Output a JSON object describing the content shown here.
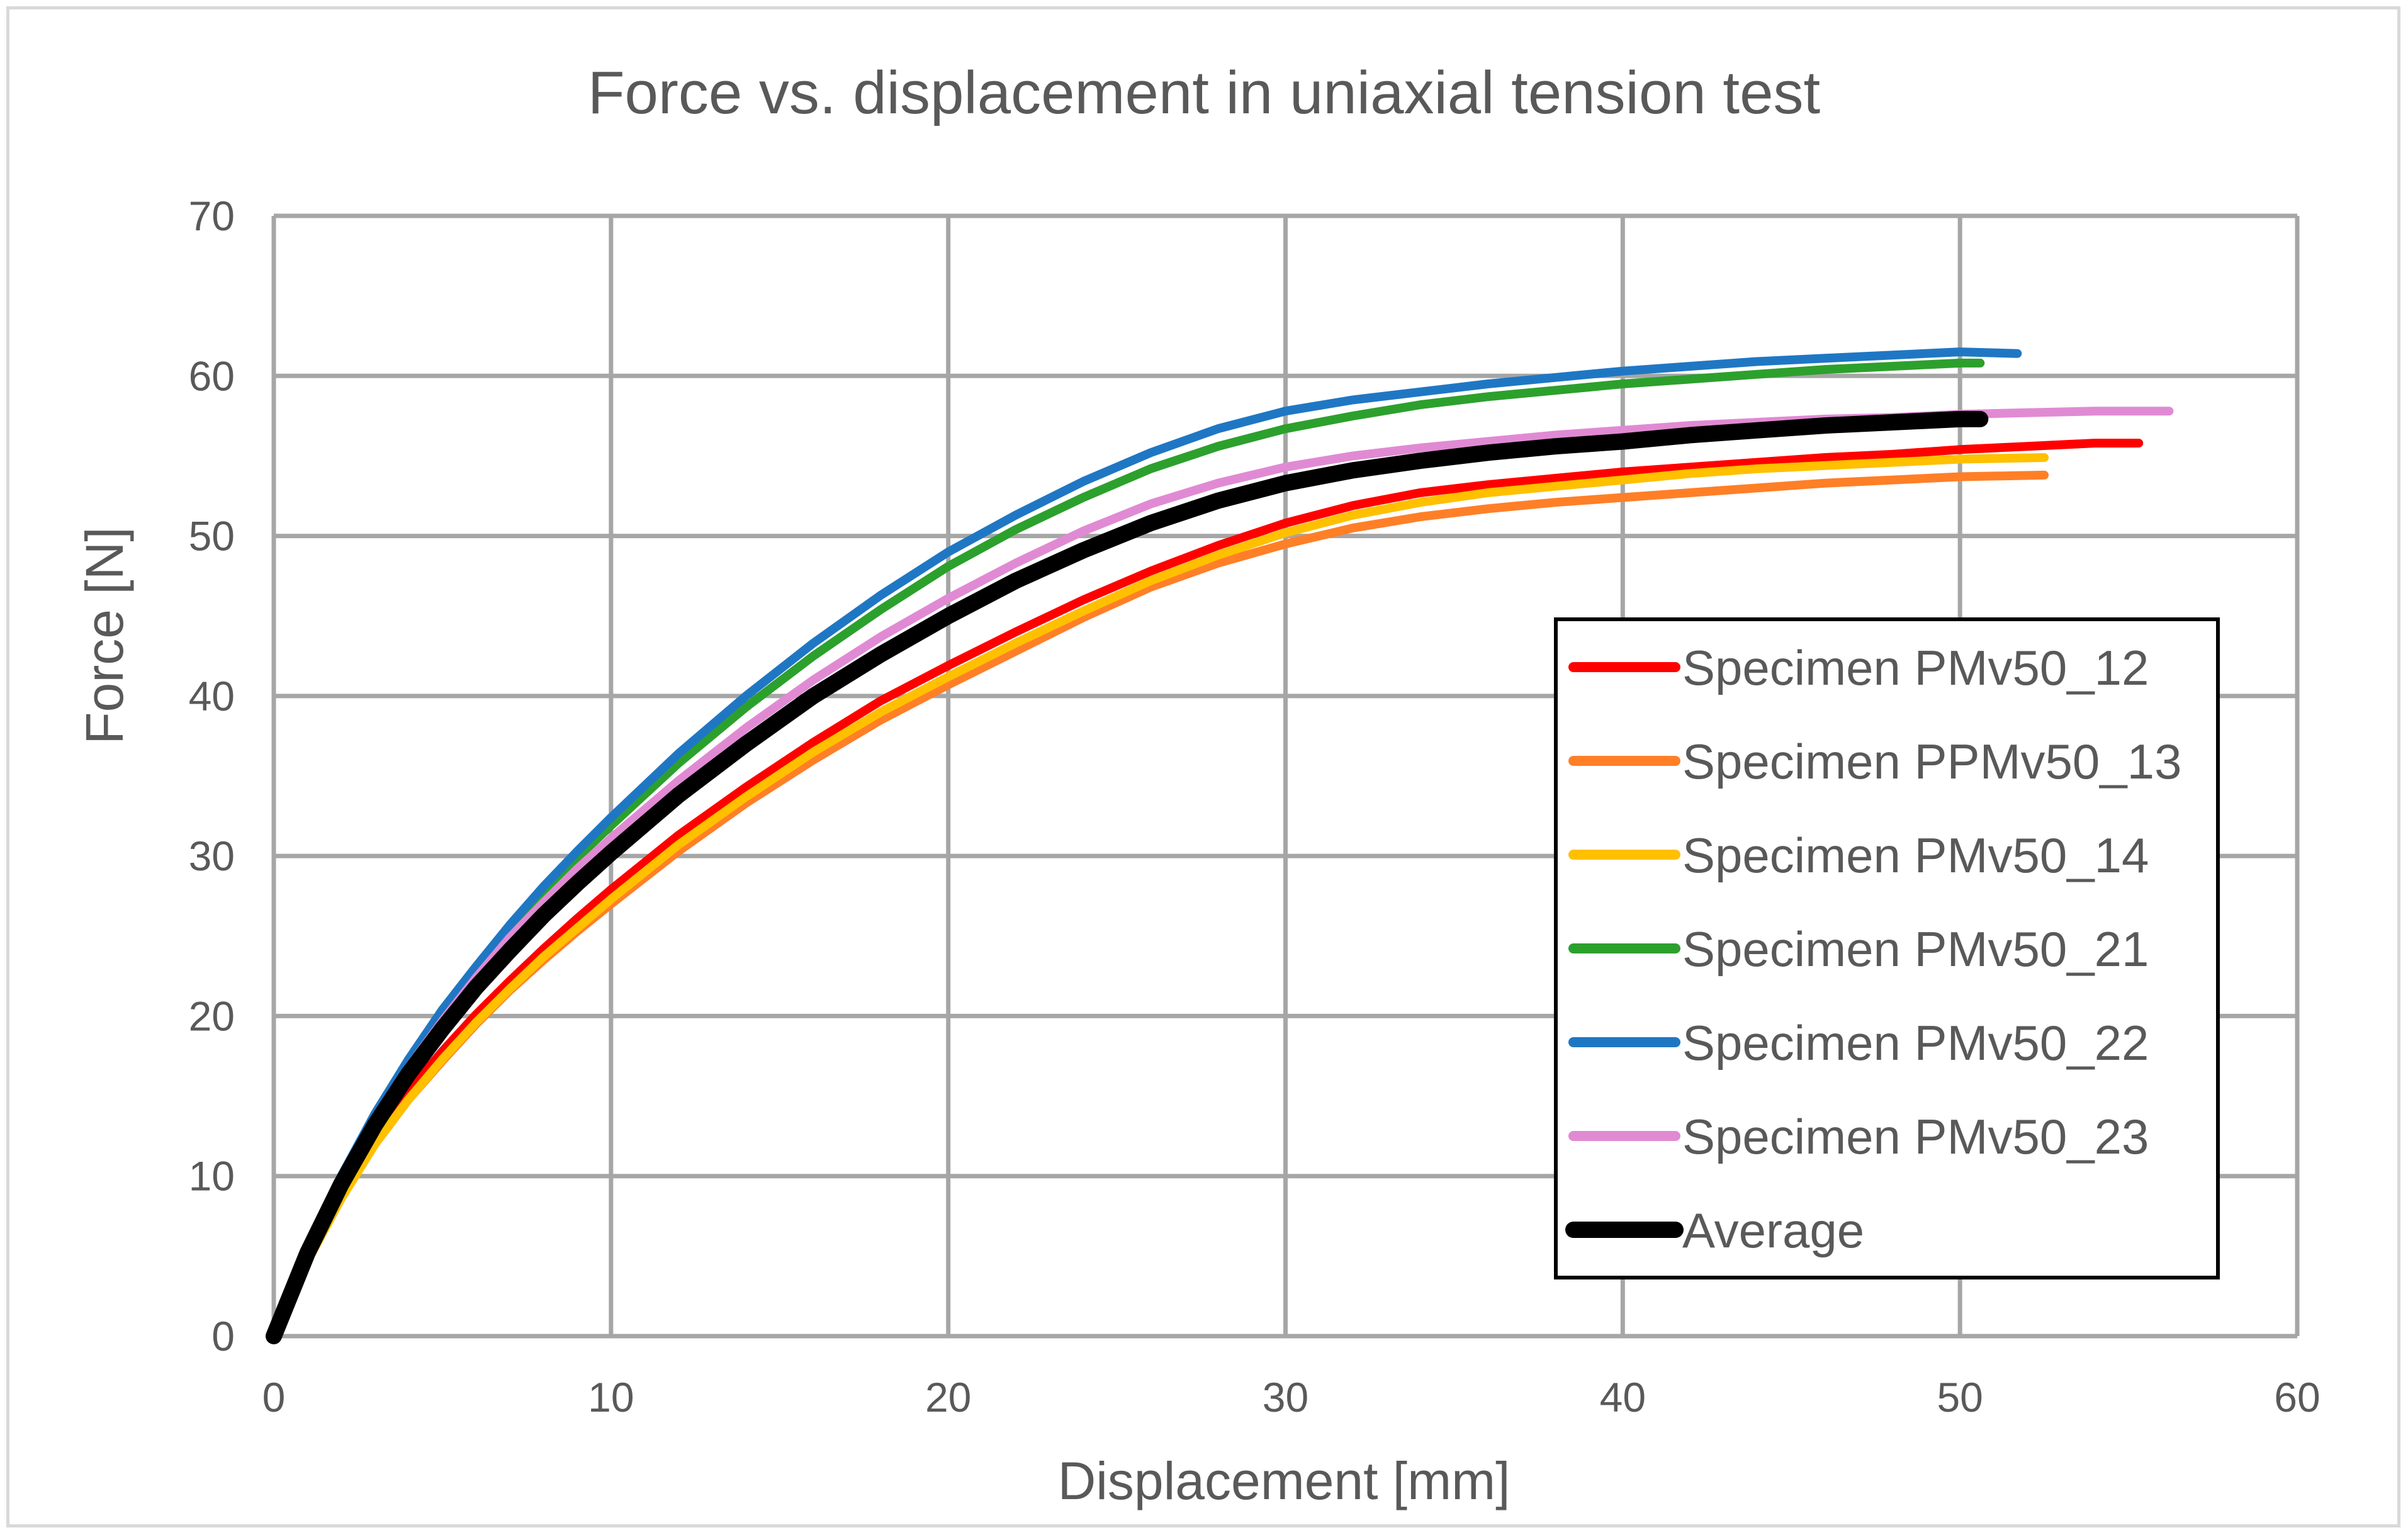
{
  "chart_data": {
    "type": "line",
    "title": "Force vs. displacement in uniaxial tension test",
    "xlabel": "Displacement [mm]",
    "ylabel": "Force [N]",
    "xlim": [
      0,
      60
    ],
    "ylim": [
      0,
      70
    ],
    "xticks": [
      0,
      10,
      20,
      30,
      40,
      50,
      60
    ],
    "yticks": [
      0,
      10,
      20,
      30,
      40,
      50,
      60,
      70
    ],
    "grid": true,
    "legend_position": "right",
    "series": [
      {
        "name": "Specimen PMv50_12",
        "color": "#ff0000",
        "x": [
          0,
          1,
          2,
          3,
          4,
          5,
          6,
          7,
          8,
          9,
          10,
          12,
          14,
          16,
          18,
          20,
          22,
          24,
          26,
          28,
          30,
          32,
          34,
          36,
          38,
          40,
          42,
          44,
          46,
          48,
          50,
          52,
          54,
          55.3
        ],
        "y": [
          0,
          5,
          9,
          12.5,
          15.3,
          17.8,
          20.1,
          22.2,
          24.2,
          26.1,
          27.9,
          31.3,
          34.3,
          37.1,
          39.7,
          41.9,
          44,
          46,
          47.8,
          49.4,
          50.8,
          51.9,
          52.7,
          53.2,
          53.6,
          54,
          54.3,
          54.6,
          54.9,
          55.1,
          55.4,
          55.6,
          55.8,
          55.8
        ]
      },
      {
        "name": "Specimen PPMv50_13",
        "color": "#ff7f27",
        "x": [
          0,
          1,
          2,
          3,
          4,
          5,
          6,
          7,
          8,
          9,
          10,
          12,
          14,
          16,
          18,
          20,
          22,
          24,
          26,
          28,
          30,
          32,
          34,
          36,
          38,
          40,
          42,
          44,
          46,
          48,
          50,
          52.5
        ],
        "y": [
          0,
          4.8,
          8.7,
          12,
          14.8,
          17.2,
          19.5,
          21.6,
          23.5,
          25.3,
          27,
          30.3,
          33.3,
          36,
          38.5,
          40.7,
          42.8,
          44.9,
          46.8,
          48.3,
          49.5,
          50.5,
          51.2,
          51.7,
          52.1,
          52.4,
          52.7,
          53,
          53.3,
          53.5,
          53.7,
          53.8
        ]
      },
      {
        "name": "Specimen PMv50_14",
        "color": "#ffc000",
        "x": [
          0,
          1,
          2,
          3,
          4,
          5,
          6,
          7,
          8,
          9,
          10,
          12,
          14,
          16,
          18,
          20,
          22,
          24,
          26,
          28,
          30,
          32,
          34,
          36,
          38,
          40,
          42,
          44,
          46,
          48,
          50,
          52.5
        ],
        "y": [
          0,
          4.7,
          8.6,
          12,
          14.8,
          17.3,
          19.6,
          21.7,
          23.7,
          25.5,
          27.3,
          30.7,
          33.7,
          36.5,
          39,
          41.2,
          43.3,
          45.3,
          47.2,
          48.8,
          50.2,
          51.3,
          52.1,
          52.7,
          53.1,
          53.5,
          53.9,
          54.2,
          54.4,
          54.6,
          54.8,
          54.9
        ]
      },
      {
        "name": "Specimen PMv50_21",
        "color": "#2ca02c",
        "x": [
          0,
          1,
          2,
          3,
          4,
          5,
          6,
          7,
          8,
          9,
          10,
          12,
          14,
          16,
          18,
          20,
          22,
          24,
          26,
          28,
          30,
          32,
          34,
          36,
          38,
          40,
          42,
          44,
          46,
          48,
          50,
          50.6
        ],
        "y": [
          0,
          5.4,
          9.9,
          13.8,
          17.2,
          20.2,
          22.9,
          25.4,
          27.7,
          29.9,
          31.9,
          35.8,
          39.3,
          42.5,
          45.4,
          48.1,
          50.4,
          52.4,
          54.2,
          55.6,
          56.7,
          57.5,
          58.2,
          58.7,
          59.1,
          59.5,
          59.8,
          60.1,
          60.4,
          60.6,
          60.8,
          60.8
        ]
      },
      {
        "name": "Specimen PMv50_22",
        "color": "#1f77c4",
        "x": [
          0,
          1,
          2,
          3,
          4,
          5,
          6,
          7,
          8,
          9,
          10,
          12,
          14,
          16,
          18,
          20,
          22,
          24,
          26,
          28,
          30,
          32,
          34,
          36,
          38,
          40,
          42,
          44,
          46,
          48,
          50,
          51.7
        ],
        "y": [
          0,
          5.5,
          10,
          13.9,
          17.3,
          20.4,
          23.1,
          25.7,
          28.1,
          30.3,
          32.4,
          36.4,
          40,
          43.3,
          46.3,
          49,
          51.3,
          53.4,
          55.2,
          56.7,
          57.8,
          58.5,
          59,
          59.5,
          59.9,
          60.3,
          60.6,
          60.9,
          61.1,
          61.3,
          61.5,
          61.4
        ]
      },
      {
        "name": "Specimen PMv50_23",
        "color": "#e18ad4",
        "x": [
          0,
          1,
          2,
          3,
          4,
          5,
          6,
          7,
          8,
          9,
          10,
          12,
          14,
          16,
          18,
          20,
          22,
          24,
          26,
          28,
          30,
          32,
          34,
          36,
          38,
          40,
          42,
          44,
          46,
          48,
          50,
          52,
          54,
          56.2
        ],
        "y": [
          0,
          5.3,
          9.7,
          13.5,
          16.8,
          19.7,
          22.4,
          24.9,
          27.1,
          29.2,
          31.1,
          34.7,
          38,
          41,
          43.7,
          46.1,
          48.3,
          50.3,
          52,
          53.3,
          54.3,
          55,
          55.5,
          55.9,
          56.3,
          56.6,
          56.9,
          57.1,
          57.3,
          57.4,
          57.6,
          57.7,
          57.8,
          57.8
        ]
      },
      {
        "name": "Average",
        "color": "#000000",
        "x": [
          0,
          1,
          2,
          3,
          4,
          5,
          6,
          7,
          8,
          9,
          10,
          12,
          14,
          16,
          18,
          20,
          22,
          24,
          26,
          28,
          30,
          32,
          34,
          36,
          38,
          40,
          42,
          44,
          46,
          48,
          50,
          50.6
        ],
        "y": [
          0,
          5.2,
          9.5,
          13.2,
          16.4,
          19.2,
          21.8,
          24.1,
          26.3,
          28.3,
          30.2,
          33.8,
          37,
          40,
          42.6,
          45,
          47.2,
          49.1,
          50.8,
          52.2,
          53.3,
          54.1,
          54.7,
          55.2,
          55.6,
          55.9,
          56.3,
          56.6,
          56.9,
          57.1,
          57.3,
          57.3
        ]
      }
    ]
  }
}
